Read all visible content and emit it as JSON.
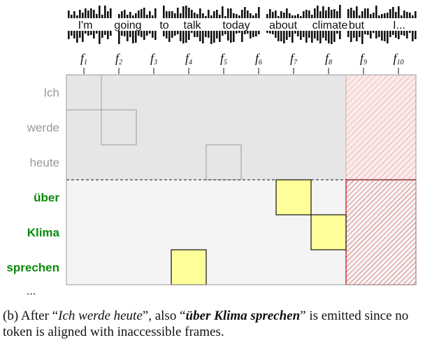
{
  "audio": {
    "words": [
      "I'm",
      "going",
      "to",
      "talk",
      "today",
      "about",
      "climate",
      "but",
      "I..."
    ],
    "frames": [
      {
        "letter": "f",
        "sub": "1"
      },
      {
        "letter": "f",
        "sub": "2"
      },
      {
        "letter": "f",
        "sub": "3"
      },
      {
        "letter": "f",
        "sub": "4"
      },
      {
        "letter": "f",
        "sub": "5"
      },
      {
        "letter": "f",
        "sub": "6"
      },
      {
        "letter": "f",
        "sub": "7"
      },
      {
        "letter": "f",
        "sub": "8"
      },
      {
        "letter": "f",
        "sub": "9"
      },
      {
        "letter": "f",
        "sub": "10"
      }
    ]
  },
  "tokens": [
    {
      "text": "Ich",
      "style": "previous"
    },
    {
      "text": "werde",
      "style": "previous"
    },
    {
      "text": "heute",
      "style": "previous"
    },
    {
      "text": "über",
      "style": "emitted"
    },
    {
      "text": "Klima",
      "style": "emitted"
    },
    {
      "text": "sprechen",
      "style": "emitted"
    }
  ],
  "ellipsis": "...",
  "alignments": [
    {
      "token": 0,
      "frame": 0,
      "style": "previous"
    },
    {
      "token": 1,
      "frame": 1,
      "style": "previous"
    },
    {
      "token": 2,
      "frame": 4,
      "style": "previous"
    },
    {
      "token": 3,
      "frame": 6,
      "style": "emitted"
    },
    {
      "token": 4,
      "frame": 7,
      "style": "emitted"
    },
    {
      "token": 5,
      "frame": 3,
      "style": "emitted"
    }
  ],
  "inaccessible_frames": [
    8,
    9
  ],
  "colors": {
    "previous_token_text": "#9a9a9a",
    "emitted_token_text": "#0a8a0a",
    "previous_region": "#e6e6e6",
    "emitted_region": "#f4f4f4",
    "emitted_box": "#ffff99",
    "hatch": "#cc0000"
  },
  "caption": {
    "p1": "(b) After “",
    "i1": "Ich werde heute",
    "p2": "”, also “",
    "b1": "über Klima sprechen",
    "p3": "” is emitted since no token is aligned with inaccessible frames."
  }
}
